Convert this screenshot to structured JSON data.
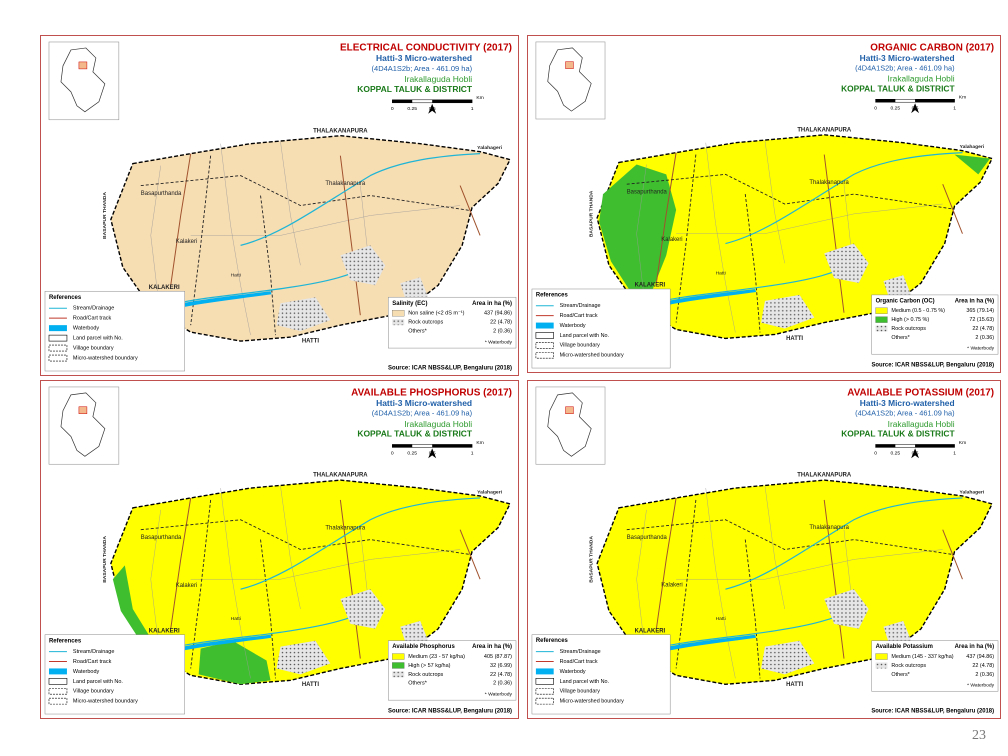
{
  "page_number": "23",
  "panels": [
    {
      "title": "ELECTRICAL CONDUCTIVITY (2017)",
      "watershed": "Hatti-3 Micro-watershed",
      "area": "(4D4A1S2b; Area - 461.09 ha)",
      "hobli": "Irakallaguda Hobli",
      "taluk": "KOPPAL TALUK & DISTRICT",
      "scale": [
        "0",
        "0.25",
        "0.5",
        "1",
        "Km"
      ],
      "villages": [
        "THALAKANAPURA",
        "Yalahageri",
        "BASAPUR THANDA",
        "Basapurthanda",
        "Thalakanapura",
        "Kalakeri",
        "Hatti",
        "KALAKERI",
        "HATTI"
      ],
      "references": {
        "heading": "References",
        "items": [
          "Stream/Drainage",
          "Road/Cart track",
          "Waterbody",
          "Land parcel with No.",
          "Village boundary",
          "Micro-watershed boundary"
        ]
      },
      "legend": {
        "heading": "Salinity (EC)",
        "area_heading": "Area in ha (%)",
        "rows": [
          {
            "label": "Non saline (<2 dS m⁻¹)",
            "area": "437 (94.86)",
            "color": "#f7ddb2"
          },
          {
            "label": "Rock outcrops",
            "area": "22 (4.78)"
          },
          {
            "label": "Others*",
            "area": "2 (0.36)"
          }
        ],
        "note": "* Waterbody"
      },
      "source": "Source: ICAR NBSS&LUP, Bengaluru (2018)"
    },
    {
      "title": "ORGANIC CARBON (2017)",
      "watershed": "Hatti-3 Micro-watershed",
      "area": "(4D4A1S2b; Area - 461.09 ha)",
      "hobli": "Irakallaguda Hobli",
      "taluk": "KOPPAL TALUK & DISTRICT",
      "scale": [
        "0",
        "0.25",
        "0.5",
        "1",
        "Km"
      ],
      "villages": [
        "THALAKANAPURA",
        "Yalahageri",
        "BASAPUR THANDA",
        "Basapurthanda",
        "Thalakanapura",
        "Kalakeri",
        "Hatti",
        "KALAKERI",
        "HATTI"
      ],
      "references": {
        "heading": "References",
        "items": [
          "Stream/Drainage",
          "Road/Cart track",
          "Waterbody",
          "Land parcel with No.",
          "Village boundary",
          "Micro-watershed boundary"
        ]
      },
      "legend": {
        "heading": "Organic Carbon (OC)",
        "area_heading": "Area in ha (%)",
        "rows": [
          {
            "label": "Medium (0.5 - 0.75 %)",
            "area": "365 (79.14)",
            "color": "#ffff00"
          },
          {
            "label": "High (> 0.75 %)",
            "area": "72 (15.63)",
            "color": "#3fbf2f"
          },
          {
            "label": "Rock outcrops",
            "area": "22 (4.78)"
          },
          {
            "label": "Others*",
            "area": "2 (0.36)"
          }
        ],
        "note": "* Waterbody"
      },
      "source": "Source: ICAR NBSS&LUP, Bengaluru (2018)"
    },
    {
      "title": "AVAILABLE PHOSPHORUS (2017)",
      "watershed": "Hatti-3 Micro-watershed",
      "area": "(4D4A1S2b; Area - 461.09 ha)",
      "hobli": "Irakallaguda Hobli",
      "taluk": "KOPPAL TALUK & DISTRICT",
      "scale": [
        "0",
        "0.25",
        "0.5",
        "1",
        "Km"
      ],
      "villages": [
        "THALAKANAPURA",
        "Yalahageri",
        "BASAPUR THANDA",
        "Basapurthanda",
        "Thalakanapura",
        "Kalakeri",
        "Hatti",
        "KALAKERI",
        "HATTI"
      ],
      "references": {
        "heading": "References",
        "items": [
          "Stream/Drainage",
          "Road/Cart track",
          "Waterbody",
          "Land parcel with No.",
          "Village boundary",
          "Micro-watershed boundary"
        ]
      },
      "legend": {
        "heading": "Available Phosphorus",
        "area_heading": "Area in ha (%)",
        "rows": [
          {
            "label": "Medium (23 - 57 kg/ha)",
            "area": "405 (87.87)",
            "color": "#ffff00"
          },
          {
            "label": "High (> 57 kg/ha)",
            "area": "32 (6.99)",
            "color": "#3fbf2f"
          },
          {
            "label": "Rock outcrops",
            "area": "22 (4.78)"
          },
          {
            "label": "Others*",
            "area": "2 (0.36)"
          }
        ],
        "note": "* Waterbody"
      },
      "source": "Source: ICAR NBSS&LUP, Bengaluru (2018)"
    },
    {
      "title": "AVAILABLE POTASSIUM (2017)",
      "watershed": "Hatti-3 Micro-watershed",
      "area": "(4D4A1S2b; Area - 461.09 ha)",
      "hobli": "Irakallaguda Hobli",
      "taluk": "KOPPAL TALUK & DISTRICT",
      "scale": [
        "0",
        "0.25",
        "0.5",
        "1",
        "Km"
      ],
      "villages": [
        "THALAKANAPURA",
        "Yalahageri",
        "BASAPUR THANDA",
        "Basapurthanda",
        "Thalakanapura",
        "Kalakeri",
        "Hatti",
        "KALAKERI",
        "HATTI"
      ],
      "references": {
        "heading": "References",
        "items": [
          "Stream/Drainage",
          "Road/Cart track",
          "Waterbody",
          "Land parcel with No.",
          "Village boundary",
          "Micro-watershed boundary"
        ]
      },
      "legend": {
        "heading": "Available Potassium",
        "area_heading": "Area in ha (%)",
        "rows": [
          {
            "label": "Medium (145 - 337 kg/ha)",
            "area": "437 (94.86)",
            "color": "#ffff00"
          },
          {
            "label": "Rock outcrops",
            "area": "22 (4.78)"
          },
          {
            "label": "Others*",
            "area": "2 (0.36)"
          }
        ],
        "note": "* Waterbody"
      },
      "source": "Source: ICAR NBSS&LUP, Bengaluru (2018)"
    }
  ]
}
